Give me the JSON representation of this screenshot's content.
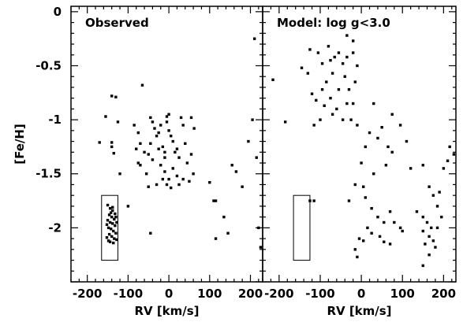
{
  "chart_data": [
    {
      "type": "scatter",
      "panel_title": "Observed",
      "xlabel": "RV [km/s]",
      "ylabel": "[Fe/H]",
      "xlim": [
        -240,
        230
      ],
      "ylim": [
        -2.5,
        0.05
      ],
      "x_ticks": [
        -200,
        -100,
        0,
        100,
        200
      ],
      "y_ticks": [
        0,
        -0.5,
        -1,
        -1.5,
        -2
      ],
      "x_tick_labels": [
        "-200",
        "-100",
        "0",
        "100",
        "200"
      ],
      "y_tick_labels": [
        "0",
        "-0.5",
        "-1",
        "-1.5",
        "-2"
      ],
      "marker_color": "#000000",
      "box": {
        "x": [
          -165,
          -125
        ],
        "y": [
          -2.3,
          -1.7
        ]
      },
      "points": [
        [
          -140,
          -0.78
        ],
        [
          -130,
          -0.79
        ],
        [
          -155,
          -0.97
        ],
        [
          -125,
          -1.02
        ],
        [
          -170,
          -1.21
        ],
        [
          -140,
          -1.21
        ],
        [
          -140,
          -1.25
        ],
        [
          -135,
          -1.31
        ],
        [
          -120,
          -1.5
        ],
        [
          -100,
          -1.8
        ],
        [
          -65,
          -0.68
        ],
        [
          -85,
          -1.05
        ],
        [
          -75,
          -1.12
        ],
        [
          -70,
          -1.22
        ],
        [
          -80,
          -1.27
        ],
        [
          -60,
          -1.3
        ],
        [
          -50,
          -1.32
        ],
        [
          -75,
          -1.4
        ],
        [
          -70,
          -1.42
        ],
        [
          -55,
          -1.5
        ],
        [
          -50,
          -1.62
        ],
        [
          -45,
          -0.98
        ],
        [
          -40,
          -1.02
        ],
        [
          -35,
          -1.08
        ],
        [
          -30,
          -1.15
        ],
        [
          -25,
          -1.12
        ],
        [
          -20,
          -1.05
        ],
        [
          -15,
          -1.25
        ],
        [
          -10,
          -1.3
        ],
        [
          -5,
          -0.97
        ],
        [
          0,
          -0.95
        ],
        [
          -5,
          -1.02
        ],
        [
          0,
          -1.1
        ],
        [
          5,
          -1.15
        ],
        [
          -10,
          -1.35
        ],
        [
          -20,
          -1.42
        ],
        [
          -15,
          -1.55
        ],
        [
          -10,
          -1.48
        ],
        [
          -5,
          -1.6
        ],
        [
          0,
          -1.55
        ],
        [
          10,
          -1.2
        ],
        [
          15,
          -1.3
        ],
        [
          20,
          -1.27
        ],
        [
          25,
          -1.35
        ],
        [
          10,
          -1.45
        ],
        [
          20,
          -1.52
        ],
        [
          25,
          -1.6
        ],
        [
          35,
          -1.55
        ],
        [
          5,
          -1.63
        ],
        [
          -30,
          -1.6
        ],
        [
          -25,
          -1.27
        ],
        [
          -40,
          -1.37
        ],
        [
          -45,
          -1.22
        ],
        [
          30,
          -0.98
        ],
        [
          35,
          -1.05
        ],
        [
          40,
          -1.22
        ],
        [
          45,
          -1.4
        ],
        [
          50,
          -1.57
        ],
        [
          55,
          -0.98
        ],
        [
          55,
          -1.32
        ],
        [
          60,
          -1.5
        ],
        [
          62,
          -1.08
        ],
        [
          -45,
          -2.05
        ],
        [
          110,
          -1.75
        ],
        [
          115,
          -1.75
        ],
        [
          100,
          -1.58
        ],
        [
          115,
          -2.1
        ],
        [
          135,
          -1.9
        ],
        [
          145,
          -2.05
        ],
        [
          155,
          -1.42
        ],
        [
          165,
          -1.48
        ],
        [
          180,
          -1.62
        ],
        [
          195,
          -1.2
        ],
        [
          205,
          -1.0
        ],
        [
          210,
          -0.25
        ],
        [
          215,
          -1.35
        ],
        [
          220,
          -2.0
        ],
        [
          225,
          -2.18
        ]
      ],
      "cluster_points": [
        [
          -150,
          -1.79
        ],
        [
          -144,
          -1.82
        ],
        [
          -138,
          -1.84
        ],
        [
          -132,
          -1.87
        ],
        [
          -146,
          -1.88
        ],
        [
          -140,
          -1.9
        ],
        [
          -134,
          -1.92
        ],
        [
          -150,
          -1.93
        ],
        [
          -144,
          -1.95
        ],
        [
          -138,
          -1.96
        ],
        [
          -132,
          -1.98
        ],
        [
          -148,
          -2.0
        ],
        [
          -142,
          -2.01
        ],
        [
          -136,
          -2.03
        ],
        [
          -130,
          -2.05
        ],
        [
          -146,
          -2.06
        ],
        [
          -140,
          -2.08
        ],
        [
          -134,
          -2.1
        ],
        [
          -128,
          -2.11
        ],
        [
          -152,
          -2.09
        ],
        [
          -144,
          -2.13
        ],
        [
          -138,
          -1.81
        ],
        [
          -130,
          -1.9
        ],
        [
          -152,
          -1.97
        ],
        [
          -136,
          -2.14
        ],
        [
          -142,
          -1.86
        ],
        [
          -148,
          -2.12
        ],
        [
          -128,
          -1.95
        ]
      ]
    },
    {
      "type": "scatter",
      "panel_title": "Model: log g<3.0",
      "xlabel": "RV [km/s]",
      "ylabel": "",
      "xlim": [
        -240,
        230
      ],
      "ylim": [
        -2.5,
        0.05
      ],
      "x_ticks": [
        -200,
        -100,
        0,
        100,
        200
      ],
      "y_ticks": [
        0,
        -0.5,
        -1,
        -1.5,
        -2
      ],
      "x_tick_labels": [
        "-200",
        "-100",
        "0",
        "100",
        "200"
      ],
      "y_tick_labels": [],
      "marker_color": "#000000",
      "box": {
        "x": [
          -165,
          -125
        ],
        "y": [
          -2.3,
          -1.7
        ]
      },
      "points": [
        [
          -35,
          -0.22
        ],
        [
          -20,
          -0.27
        ],
        [
          -80,
          -0.32
        ],
        [
          -125,
          -0.35
        ],
        [
          -105,
          -0.38
        ],
        [
          -55,
          -0.38
        ],
        [
          -20,
          -0.38
        ],
        [
          -65,
          -0.42
        ],
        [
          -35,
          -0.42
        ],
        [
          -75,
          -0.45
        ],
        [
          -10,
          -0.5
        ],
        [
          -145,
          -0.52
        ],
        [
          -95,
          -0.48
        ],
        [
          -45,
          -0.48
        ],
        [
          -130,
          -0.57
        ],
        [
          -70,
          -0.57
        ],
        [
          -40,
          -0.6
        ],
        [
          -215,
          -0.63
        ],
        [
          -85,
          -0.65
        ],
        [
          -95,
          -0.72
        ],
        [
          -55,
          -0.72
        ],
        [
          -30,
          -0.72
        ],
        [
          -120,
          -0.76
        ],
        [
          -110,
          -0.82
        ],
        [
          -90,
          -0.87
        ],
        [
          -75,
          -0.8
        ],
        [
          -60,
          -0.9
        ],
        [
          -35,
          -0.85
        ],
        [
          -20,
          -0.85
        ],
        [
          -15,
          -0.65
        ],
        [
          -70,
          -0.95
        ],
        [
          -25,
          -1.0
        ],
        [
          -185,
          -1.02
        ],
        [
          -10,
          -1.05
        ],
        [
          -45,
          -1.0
        ],
        [
          -115,
          -1.05
        ],
        [
          -100,
          -1.0
        ],
        [
          30,
          -0.85
        ],
        [
          75,
          -0.95
        ],
        [
          95,
          -1.05
        ],
        [
          20,
          -1.12
        ],
        [
          40,
          -1.17
        ],
        [
          50,
          -1.07
        ],
        [
          110,
          -1.2
        ],
        [
          10,
          -1.25
        ],
        [
          65,
          -1.25
        ],
        [
          75,
          -1.3
        ],
        [
          0,
          -1.4
        ],
        [
          30,
          -1.5
        ],
        [
          60,
          -1.42
        ],
        [
          120,
          -1.45
        ],
        [
          150,
          -1.42
        ],
        [
          200,
          -1.45
        ],
        [
          210,
          -1.38
        ],
        [
          225,
          -1.32
        ],
        [
          215,
          -1.25
        ],
        [
          -15,
          -1.6
        ],
        [
          5,
          -1.62
        ],
        [
          10,
          -1.72
        ],
        [
          -30,
          -1.75
        ],
        [
          25,
          -1.82
        ],
        [
          40,
          -1.9
        ],
        [
          55,
          -1.95
        ],
        [
          70,
          -1.85
        ],
        [
          80,
          -1.95
        ],
        [
          95,
          -2.0
        ],
        [
          100,
          -2.03
        ],
        [
          15,
          -2.0
        ],
        [
          -5,
          -2.1
        ],
        [
          5,
          -2.12
        ],
        [
          25,
          -2.05
        ],
        [
          45,
          -2.08
        ],
        [
          55,
          -2.13
        ],
        [
          70,
          -2.15
        ],
        [
          -15,
          -2.2
        ],
        [
          -10,
          -2.27
        ],
        [
          165,
          -1.62
        ],
        [
          175,
          -1.7
        ],
        [
          190,
          -1.67
        ],
        [
          185,
          -1.8
        ],
        [
          150,
          -1.9
        ],
        [
          160,
          -1.95
        ],
        [
          170,
          -2.0
        ],
        [
          195,
          -1.9
        ],
        [
          150,
          -2.03
        ],
        [
          165,
          -2.08
        ],
        [
          155,
          -2.15
        ],
        [
          175,
          -2.12
        ],
        [
          185,
          -2.0
        ],
        [
          165,
          -2.25
        ],
        [
          180,
          -2.18
        ],
        [
          150,
          -2.35
        ],
        [
          -125,
          -1.75
        ],
        [
          -115,
          -1.75
        ],
        [
          135,
          -1.85
        ]
      ],
      "cluster_points": []
    }
  ]
}
